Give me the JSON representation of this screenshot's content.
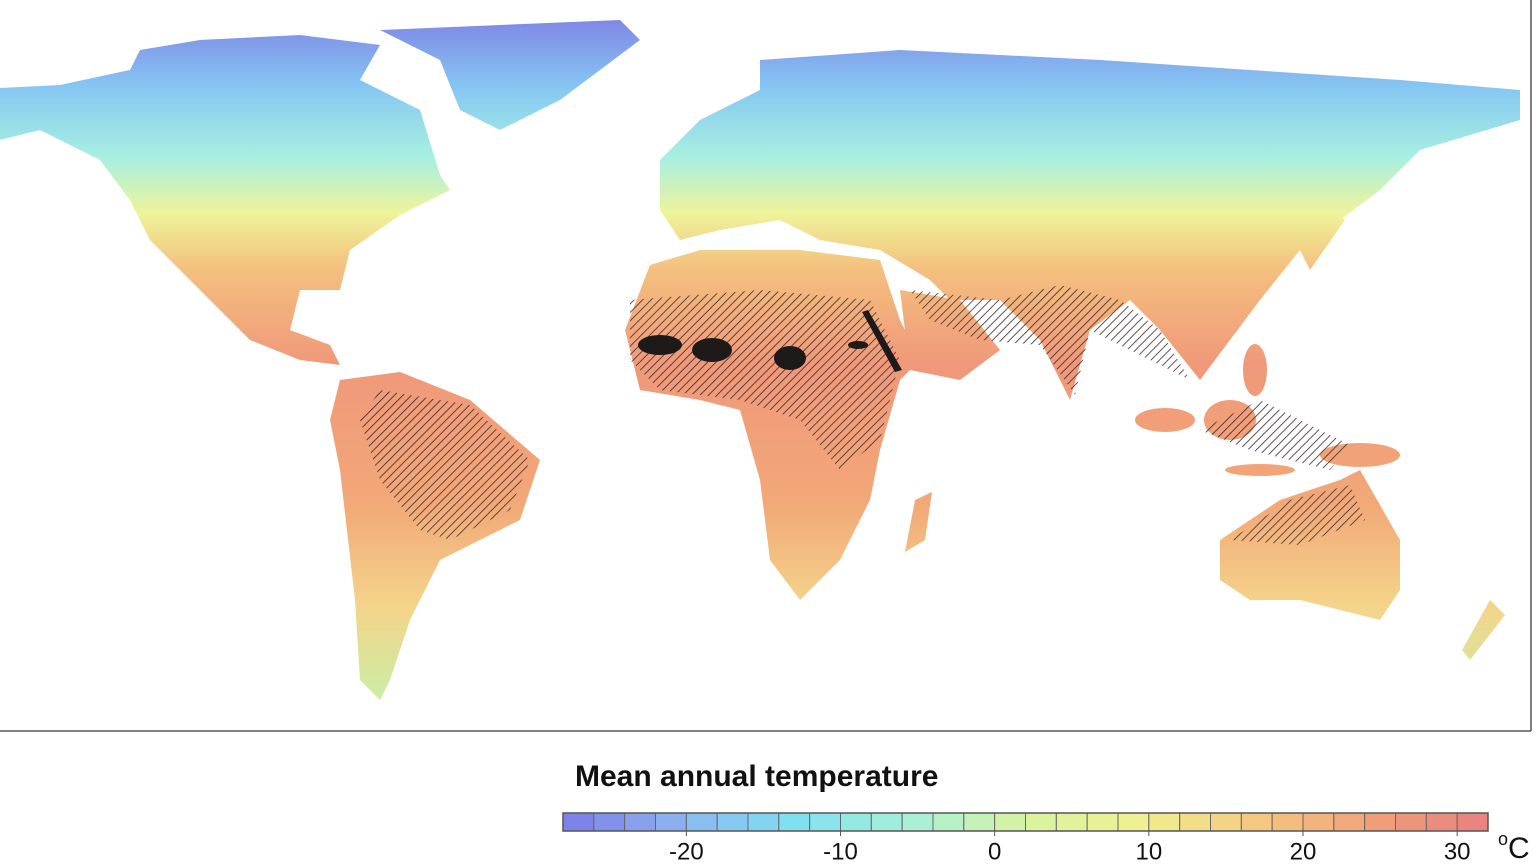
{
  "legend": {
    "title": "Mean annual temperature",
    "unit_superscript": "o",
    "unit": "C",
    "range": [
      -28,
      32
    ],
    "step": 2,
    "ticks": [
      -20,
      -10,
      0,
      10,
      20,
      30
    ],
    "colormap": [
      "#7c7ce8",
      "#8cb4f0",
      "#80e0f0",
      "#a8f0d8",
      "#d8f4a0",
      "#f0f090",
      "#f4c880",
      "#f0a078",
      "#e88080"
    ]
  }
}
